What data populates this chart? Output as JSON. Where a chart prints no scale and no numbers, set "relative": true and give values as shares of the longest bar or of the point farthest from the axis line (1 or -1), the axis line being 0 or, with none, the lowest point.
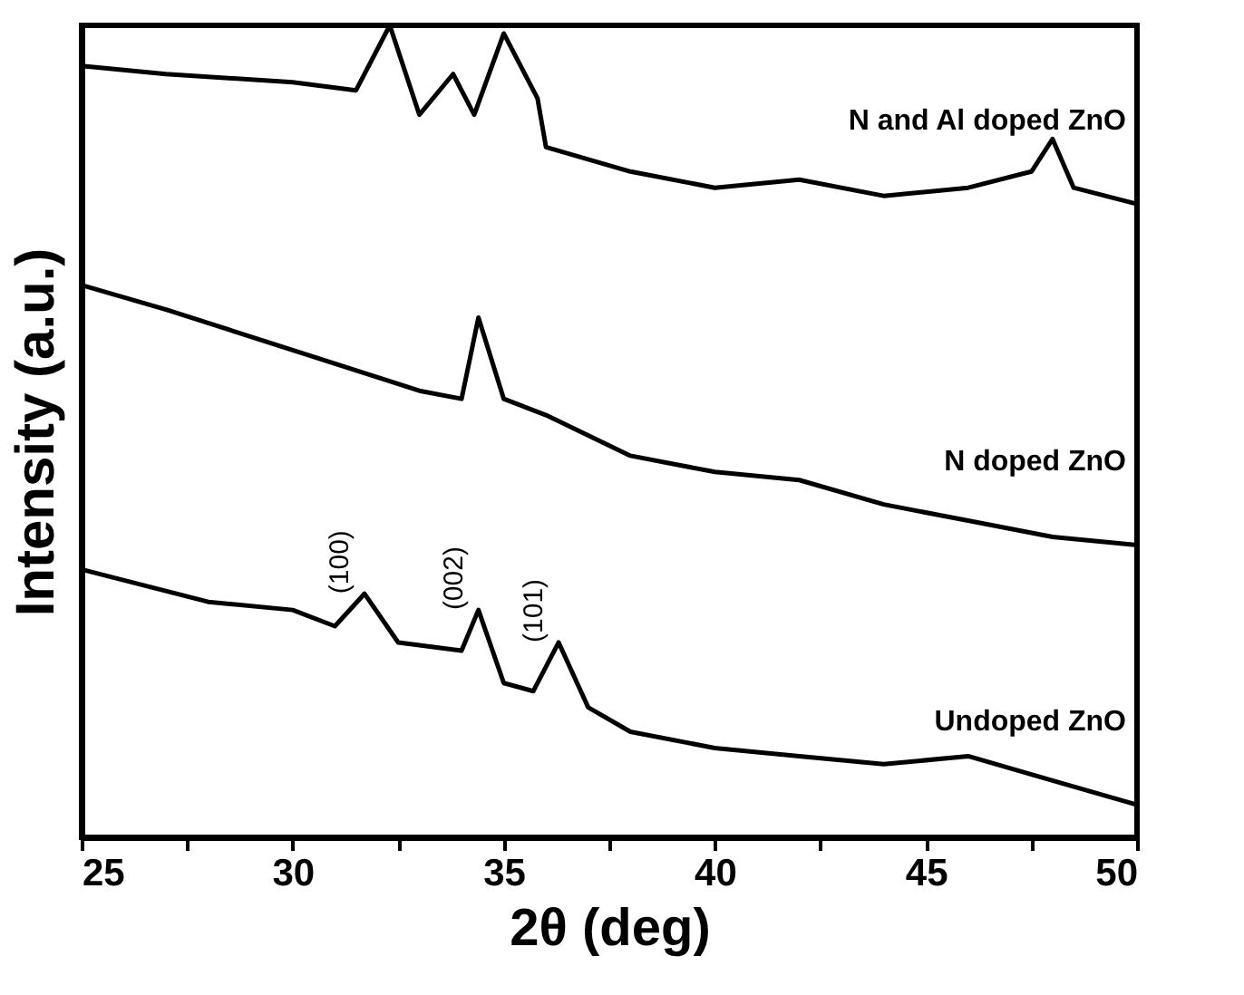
{
  "chart_data": {
    "type": "line",
    "relative": true,
    "xlabel": "2θ (deg)",
    "ylabel": "Intensity (a.u.)",
    "xlim": [
      25,
      50
    ],
    "xticks": [
      25,
      {
        "value": 27.5,
        "label": null
      },
      30,
      {
        "value": 32.5,
        "label": null
      },
      35,
      {
        "value": 37.5,
        "label": null
      },
      40,
      {
        "value": 42.5,
        "label": null
      },
      45,
      {
        "value": 47.5,
        "label": null
      },
      50
    ],
    "series": [
      {
        "name": "N and Al doped ZnO",
        "color": "#000000",
        "x": [
          25,
          27,
          30,
          31.5,
          32.3,
          33,
          33.8,
          34.3,
          35,
          35.8,
          36,
          38,
          40,
          42,
          44,
          46,
          47.5,
          48,
          48.5,
          50
        ],
        "values": [
          0.95,
          0.94,
          0.93,
          0.92,
          1.0,
          0.89,
          0.94,
          0.89,
          0.99,
          0.91,
          0.85,
          0.82,
          0.8,
          0.81,
          0.79,
          0.8,
          0.82,
          0.86,
          0.8,
          0.78
        ]
      },
      {
        "name": "N doped ZnO",
        "color": "#000000",
        "x": [
          25,
          27,
          30,
          33,
          34,
          34.4,
          35,
          36,
          38,
          40,
          42,
          44,
          46,
          48,
          50
        ],
        "values": [
          0.68,
          0.65,
          0.6,
          0.55,
          0.54,
          0.64,
          0.54,
          0.52,
          0.47,
          0.45,
          0.44,
          0.41,
          0.39,
          0.37,
          0.36
        ]
      },
      {
        "name": "Undoped ZnO",
        "color": "#000000",
        "x": [
          25,
          28,
          30,
          31,
          31.7,
          32.5,
          34,
          34.4,
          35,
          35.7,
          36.3,
          37,
          38,
          40,
          42,
          44,
          46,
          48,
          50
        ],
        "values": [
          0.33,
          0.29,
          0.28,
          0.26,
          0.3,
          0.24,
          0.23,
          0.28,
          0.19,
          0.18,
          0.24,
          0.16,
          0.13,
          0.11,
          0.1,
          0.09,
          0.1,
          0.07,
          0.04
        ]
      }
    ],
    "annotations": [
      {
        "text": "(100)",
        "x": 31.7,
        "y": 0.3
      },
      {
        "text": "(002)",
        "x": 34.4,
        "y": 0.28
      },
      {
        "text": "(101)",
        "x": 36.3,
        "y": 0.24
      }
    ],
    "marker": "none",
    "line_style": "solid"
  }
}
